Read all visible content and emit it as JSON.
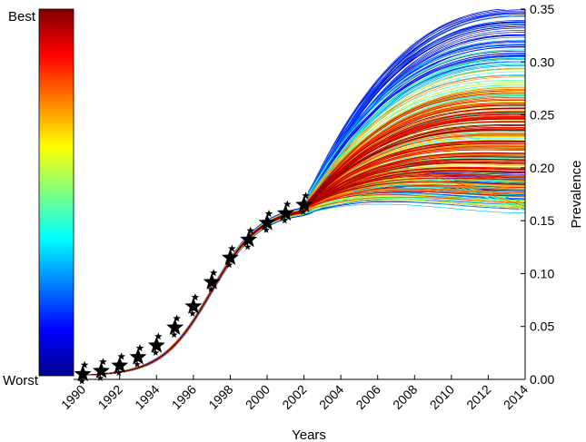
{
  "chart_data": {
    "type": "line",
    "title": "",
    "xlabel": "Years",
    "ylabel": "Prevalence",
    "xlim": [
      1989.5,
      2014
    ],
    "ylim": [
      0,
      0.35
    ],
    "x_ticks": [
      "1990",
      "1992",
      "1994",
      "1996",
      "1998",
      "2000",
      "2002",
      "2004",
      "2006",
      "2008",
      "2010",
      "2012",
      "2014"
    ],
    "y_ticks": [
      "0.00",
      "0.05",
      "0.10",
      "0.15",
      "0.20",
      "0.25",
      "0.30",
      "0.35"
    ],
    "grid": false,
    "colorbar": {
      "top_label": "Best",
      "bottom_label": "Worst",
      "colormap": "jet"
    },
    "observed": {
      "name": "",
      "x": [
        1990,
        1991,
        1992,
        1993,
        1994,
        1995,
        1996,
        1997,
        1998,
        1999,
        2000,
        2001,
        2002
      ],
      "y": [
        0.005,
        0.008,
        0.013,
        0.021,
        0.032,
        0.049,
        0.069,
        0.092,
        0.115,
        0.132,
        0.148,
        0.157,
        0.165
      ]
    },
    "simulations": {
      "count": 420,
      "fit_end_year": 2002,
      "end_year": 2014,
      "end_prevalence_range": [
        0.155,
        0.35
      ],
      "best_fit_end_prevalence": [
        0.19,
        0.26
      ]
    }
  }
}
